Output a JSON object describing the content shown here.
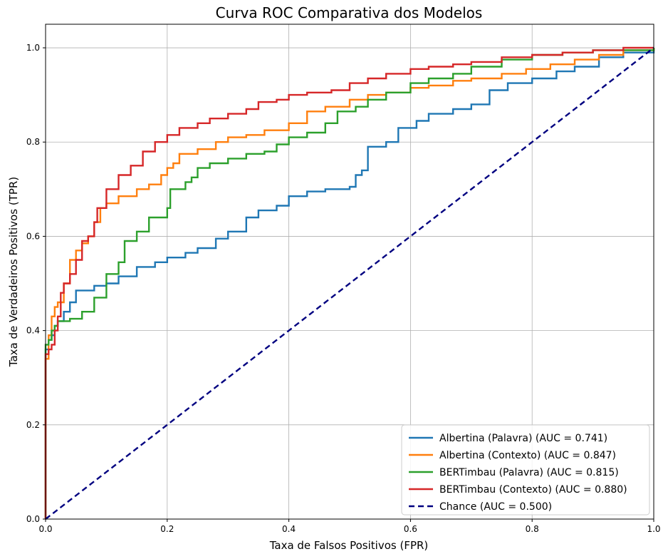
{
  "chart_data": {
    "type": "line",
    "title": "Curva ROC Comparativa dos Modelos",
    "xlabel": "Taxa de Falsos Positivos (FPR)",
    "ylabel": "Taxa de Verdadeiros Positivos (TPR)",
    "xlim": [
      0,
      1
    ],
    "ylim": [
      0,
      1.05
    ],
    "xticks": [
      "0.0",
      "0.2",
      "0.4",
      "0.6",
      "0.8",
      "1.0"
    ],
    "yticks": [
      "0.0",
      "0.2",
      "0.4",
      "0.6",
      "0.8",
      "1.0"
    ],
    "grid": true,
    "legend_position": "bottom-right",
    "series": [
      {
        "name": "Albertina (Palavra) (AUC = 0.741)",
        "color": "#1f77b4",
        "dashed": false,
        "points": [
          [
            0,
            0
          ],
          [
            0,
            0.36
          ],
          [
            0.005,
            0.38
          ],
          [
            0.01,
            0.39
          ],
          [
            0.015,
            0.41
          ],
          [
            0.02,
            0.42
          ],
          [
            0.03,
            0.44
          ],
          [
            0.04,
            0.46
          ],
          [
            0.05,
            0.485
          ],
          [
            0.08,
            0.495
          ],
          [
            0.1,
            0.5
          ],
          [
            0.12,
            0.515
          ],
          [
            0.15,
            0.535
          ],
          [
            0.18,
            0.545
          ],
          [
            0.2,
            0.555
          ],
          [
            0.23,
            0.565
          ],
          [
            0.25,
            0.575
          ],
          [
            0.28,
            0.595
          ],
          [
            0.3,
            0.61
          ],
          [
            0.33,
            0.64
          ],
          [
            0.35,
            0.655
          ],
          [
            0.38,
            0.665
          ],
          [
            0.4,
            0.685
          ],
          [
            0.43,
            0.695
          ],
          [
            0.46,
            0.7
          ],
          [
            0.5,
            0.705
          ],
          [
            0.51,
            0.73
          ],
          [
            0.52,
            0.74
          ],
          [
            0.53,
            0.79
          ],
          [
            0.56,
            0.8
          ],
          [
            0.58,
            0.83
          ],
          [
            0.61,
            0.845
          ],
          [
            0.63,
            0.86
          ],
          [
            0.67,
            0.87
          ],
          [
            0.7,
            0.88
          ],
          [
            0.73,
            0.91
          ],
          [
            0.76,
            0.925
          ],
          [
            0.8,
            0.935
          ],
          [
            0.84,
            0.95
          ],
          [
            0.87,
            0.96
          ],
          [
            0.91,
            0.98
          ],
          [
            0.95,
            0.99
          ],
          [
            1,
            1
          ]
        ]
      },
      {
        "name": "Albertina (Contexto) (AUC = 0.847)",
        "color": "#ff7f0e",
        "dashed": false,
        "points": [
          [
            0,
            0
          ],
          [
            0,
            0.34
          ],
          [
            0.005,
            0.39
          ],
          [
            0.01,
            0.43
          ],
          [
            0.015,
            0.45
          ],
          [
            0.02,
            0.46
          ],
          [
            0.03,
            0.5
          ],
          [
            0.04,
            0.55
          ],
          [
            0.05,
            0.57
          ],
          [
            0.06,
            0.585
          ],
          [
            0.07,
            0.6
          ],
          [
            0.08,
            0.63
          ],
          [
            0.09,
            0.66
          ],
          [
            0.1,
            0.67
          ],
          [
            0.12,
            0.685
          ],
          [
            0.15,
            0.7
          ],
          [
            0.17,
            0.71
          ],
          [
            0.19,
            0.73
          ],
          [
            0.2,
            0.745
          ],
          [
            0.21,
            0.755
          ],
          [
            0.22,
            0.775
          ],
          [
            0.25,
            0.785
          ],
          [
            0.28,
            0.8
          ],
          [
            0.3,
            0.81
          ],
          [
            0.33,
            0.815
          ],
          [
            0.36,
            0.825
          ],
          [
            0.4,
            0.84
          ],
          [
            0.43,
            0.865
          ],
          [
            0.46,
            0.875
          ],
          [
            0.5,
            0.89
          ],
          [
            0.53,
            0.9
          ],
          [
            0.56,
            0.905
          ],
          [
            0.6,
            0.915
          ],
          [
            0.63,
            0.92
          ],
          [
            0.67,
            0.93
          ],
          [
            0.7,
            0.935
          ],
          [
            0.75,
            0.945
          ],
          [
            0.79,
            0.955
          ],
          [
            0.83,
            0.965
          ],
          [
            0.87,
            0.975
          ],
          [
            0.91,
            0.985
          ],
          [
            0.95,
            0.995
          ],
          [
            1,
            1
          ]
        ]
      },
      {
        "name": "BERTimbau (Palavra) (AUC = 0.815)",
        "color": "#2ca02c",
        "dashed": false,
        "points": [
          [
            0,
            0
          ],
          [
            0,
            0.37
          ],
          [
            0.005,
            0.38
          ],
          [
            0.01,
            0.4
          ],
          [
            0.015,
            0.41
          ],
          [
            0.02,
            0.42
          ],
          [
            0.04,
            0.425
          ],
          [
            0.06,
            0.44
          ],
          [
            0.08,
            0.47
          ],
          [
            0.1,
            0.52
          ],
          [
            0.12,
            0.545
          ],
          [
            0.13,
            0.59
          ],
          [
            0.15,
            0.61
          ],
          [
            0.17,
            0.64
          ],
          [
            0.2,
            0.66
          ],
          [
            0.205,
            0.7
          ],
          [
            0.23,
            0.715
          ],
          [
            0.24,
            0.725
          ],
          [
            0.25,
            0.745
          ],
          [
            0.27,
            0.755
          ],
          [
            0.3,
            0.765
          ],
          [
            0.33,
            0.775
          ],
          [
            0.36,
            0.78
          ],
          [
            0.38,
            0.795
          ],
          [
            0.4,
            0.81
          ],
          [
            0.43,
            0.82
          ],
          [
            0.46,
            0.84
          ],
          [
            0.48,
            0.865
          ],
          [
            0.51,
            0.875
          ],
          [
            0.53,
            0.89
          ],
          [
            0.56,
            0.905
          ],
          [
            0.6,
            0.925
          ],
          [
            0.63,
            0.935
          ],
          [
            0.67,
            0.945
          ],
          [
            0.7,
            0.96
          ],
          [
            0.75,
            0.975
          ],
          [
            0.8,
            0.985
          ],
          [
            0.85,
            0.99
          ],
          [
            0.9,
            0.995
          ],
          [
            1,
            1
          ]
        ]
      },
      {
        "name": "BERTimbau (Contexto) (AUC = 0.880)",
        "color": "#d62728",
        "dashed": false,
        "points": [
          [
            0,
            0
          ],
          [
            0,
            0.35
          ],
          [
            0.005,
            0.36
          ],
          [
            0.01,
            0.37
          ],
          [
            0.015,
            0.4
          ],
          [
            0.02,
            0.43
          ],
          [
            0.025,
            0.48
          ],
          [
            0.03,
            0.5
          ],
          [
            0.04,
            0.52
          ],
          [
            0.05,
            0.55
          ],
          [
            0.06,
            0.59
          ],
          [
            0.07,
            0.6
          ],
          [
            0.08,
            0.63
          ],
          [
            0.085,
            0.66
          ],
          [
            0.1,
            0.7
          ],
          [
            0.12,
            0.73
          ],
          [
            0.14,
            0.75
          ],
          [
            0.16,
            0.78
          ],
          [
            0.18,
            0.8
          ],
          [
            0.2,
            0.815
          ],
          [
            0.22,
            0.83
          ],
          [
            0.25,
            0.84
          ],
          [
            0.27,
            0.85
          ],
          [
            0.3,
            0.86
          ],
          [
            0.33,
            0.87
          ],
          [
            0.35,
            0.885
          ],
          [
            0.38,
            0.89
          ],
          [
            0.4,
            0.9
          ],
          [
            0.43,
            0.905
          ],
          [
            0.47,
            0.91
          ],
          [
            0.5,
            0.925
          ],
          [
            0.53,
            0.935
          ],
          [
            0.56,
            0.945
          ],
          [
            0.6,
            0.955
          ],
          [
            0.63,
            0.96
          ],
          [
            0.67,
            0.965
          ],
          [
            0.7,
            0.97
          ],
          [
            0.75,
            0.98
          ],
          [
            0.8,
            0.985
          ],
          [
            0.85,
            0.99
          ],
          [
            0.9,
            0.995
          ],
          [
            0.95,
            1
          ],
          [
            1,
            1
          ]
        ]
      },
      {
        "name": "Chance (AUC = 0.500)",
        "color": "#000080",
        "dashed": true,
        "points": [
          [
            0,
            0
          ],
          [
            1,
            1
          ]
        ]
      }
    ]
  }
}
